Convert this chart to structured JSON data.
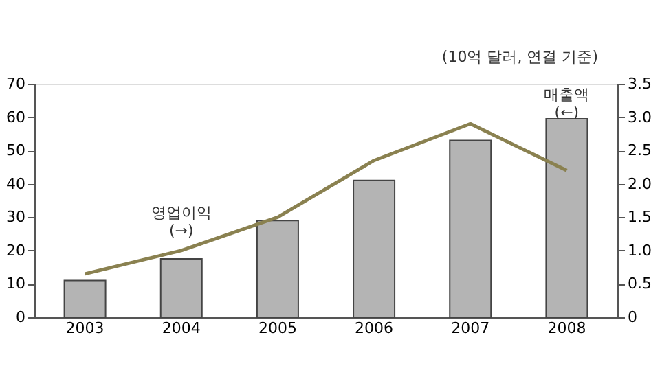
{
  "chart_data": {
    "type": "bar",
    "categories": [
      "2003",
      "2004",
      "2005",
      "2006",
      "2007",
      "2008"
    ],
    "y2label": "(10억 달러, 연결 기준)",
    "series": [
      {
        "name": "매출액 (←)",
        "color": "#b4b4b4",
        "values": [
          11,
          17.5,
          29,
          41,
          53,
          59.5
        ]
      },
      {
        "name": "영업이익 (→)",
        "type": "line",
        "axis": "y2",
        "color": "#8a8150",
        "values": [
          0.65,
          1.0,
          1.5,
          2.35,
          2.9,
          2.2
        ]
      }
    ],
    "ylim": [
      0,
      70
    ],
    "yticks": [
      0,
      10,
      20,
      30,
      40,
      50,
      60,
      70
    ],
    "y2lim": [
      0,
      3.5
    ],
    "y2ticks": [
      0,
      {
        "value": 0.5,
        "label": "0.5"
      },
      {
        "value": 1.0,
        "label": "1.0"
      },
      {
        "value": 1.5,
        "label": "1.5"
      },
      {
        "value": 2.0,
        "label": "2.0"
      },
      {
        "value": 2.5,
        "label": "2.5"
      },
      {
        "value": 3.0,
        "label": "3.0"
      },
      {
        "value": 3.5,
        "label": "3.5"
      }
    ],
    "grid": false
  }
}
